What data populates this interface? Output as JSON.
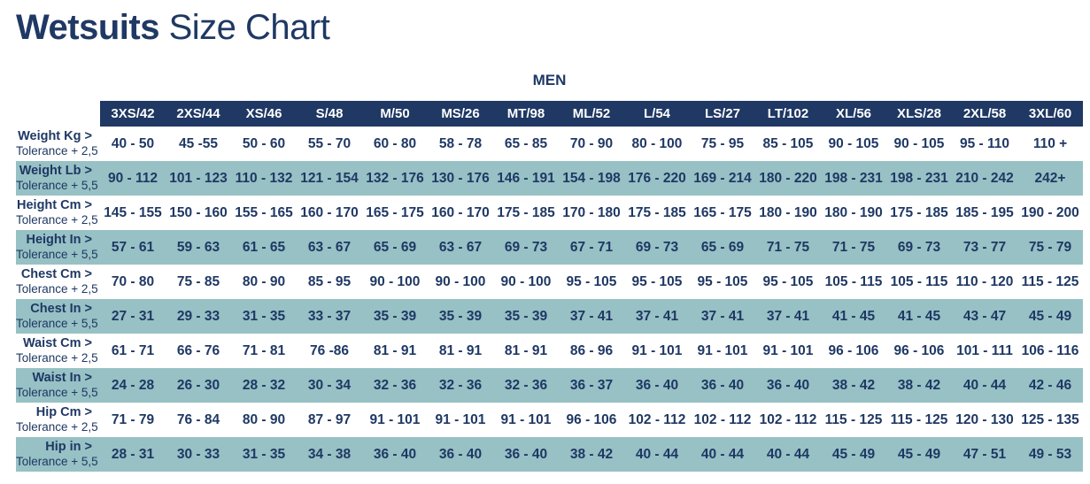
{
  "page": {
    "title": {
      "brand": "Wetsuits",
      "rest": "Size Chart"
    },
    "group_label": "MEN"
  },
  "colors": {
    "header_navy": "#1F3864",
    "row_teal": "#97C1C4",
    "text_navy": "#1F3864",
    "header_text": "#FFFFFF"
  },
  "table": {
    "columns": [
      "3XS/42",
      "2XS/44",
      "XS/46",
      "S/48",
      "M/50",
      "MS/26",
      "MT/98",
      "ML/52",
      "L/54",
      "LS/27",
      "LT/102",
      "XL/56",
      "XLS/28",
      "2XL/58",
      "3XL/60"
    ],
    "rows": [
      {
        "label": "Weight Kg >",
        "tolerance": "Tolerance + 2,5",
        "values": [
          "40 - 50",
          "45 -55",
          "50 - 60",
          "55 - 70",
          "60 - 80",
          "58 - 78",
          "65 - 85",
          "70 - 90",
          "80 - 100",
          "75 - 95",
          "85 - 105",
          "90 - 105",
          "90 - 105",
          "95 - 110",
          "110 +"
        ]
      },
      {
        "label": "Weight Lb >",
        "tolerance": "Tolerance + 5,5",
        "values": [
          "90 - 112",
          "101 - 123",
          "110 - 132",
          "121 - 154",
          "132 - 176",
          "130 - 176",
          "146 - 191",
          "154 - 198",
          "176 - 220",
          "169 - 214",
          "180 - 220",
          "198 - 231",
          "198 - 231",
          "210 - 242",
          "242+"
        ]
      },
      {
        "label": "Height Cm >",
        "tolerance": "Tolerance + 2,5",
        "values": [
          "145 - 155",
          "150 - 160",
          "155 - 165",
          "160 - 170",
          "165 - 175",
          "160 - 170",
          "175 - 185",
          "170 - 180",
          "175 - 185",
          "165 - 175",
          "180 - 190",
          "180 - 190",
          "175 - 185",
          "185 - 195",
          "190 - 200"
        ]
      },
      {
        "label": "Height In >",
        "tolerance": "Tolerance + 5,5",
        "values": [
          "57 - 61",
          "59 - 63",
          "61 - 65",
          "63 - 67",
          "65 - 69",
          "63 - 67",
          "69 - 73",
          "67 - 71",
          "69 - 73",
          "65 - 69",
          "71 - 75",
          "71 - 75",
          "69 - 73",
          "73 - 77",
          "75 - 79"
        ]
      },
      {
        "label": "Chest Cm >",
        "tolerance": "Tolerance + 2,5",
        "values": [
          "70 - 80",
          "75 - 85",
          "80 - 90",
          "85 - 95",
          "90 - 100",
          "90 - 100",
          "90 - 100",
          "95 - 105",
          "95 - 105",
          "95 - 105",
          "95 - 105",
          "105 - 115",
          "105 - 115",
          "110 - 120",
          "115 - 125"
        ]
      },
      {
        "label": "Chest In >",
        "tolerance": "Tolerance + 5,5",
        "values": [
          "27 - 31",
          "29 - 33",
          "31 - 35",
          "33 - 37",
          "35 - 39",
          "35 - 39",
          "35 - 39",
          "37 - 41",
          "37 - 41",
          "37 - 41",
          "37 - 41",
          "41 - 45",
          "41 - 45",
          "43 - 47",
          "45 - 49"
        ]
      },
      {
        "label": "Waist Cm >",
        "tolerance": "Tolerance + 2,5",
        "values": [
          "61 - 71",
          "66 - 76",
          "71 - 81",
          "76 -86",
          "81 - 91",
          "81 - 91",
          "81 - 91",
          "86 - 96",
          "91 - 101",
          "91 - 101",
          "91 - 101",
          "96 - 106",
          "96 - 106",
          "101 - 111",
          "106 - 116"
        ]
      },
      {
        "label": "Waist In >",
        "tolerance": "Tolerance + 5,5",
        "values": [
          "24 - 28",
          "26 - 30",
          "28 - 32",
          "30 - 34",
          "32 - 36",
          "32 - 36",
          "32 - 36",
          "36 - 37",
          "36 - 40",
          "36 - 40",
          "36 - 40",
          "38 - 42",
          "38 - 42",
          "40 - 44",
          "42 - 46"
        ]
      },
      {
        "label": "Hip Cm >",
        "tolerance": "Tolerance + 2,5",
        "values": [
          "71 - 79",
          "76 - 84",
          "80 - 90",
          "87 - 97",
          "91 - 101",
          "91 - 101",
          "91 - 101",
          "96 - 106",
          "102 - 112",
          "102 - 112",
          "102 - 112",
          "115 - 125",
          "115 - 125",
          "120 - 130",
          "125 - 135"
        ]
      },
      {
        "label": "Hip in >",
        "tolerance": "Tolerance + 5,5",
        "values": [
          "28 - 31",
          "30 - 33",
          "31 - 35",
          "34 - 38",
          "36 - 40",
          "36 - 40",
          "36 - 40",
          "38 - 42",
          "40 - 44",
          "40 - 44",
          "40 - 44",
          "45 - 49",
          "45 - 49",
          "47 - 51",
          "49 - 53"
        ]
      }
    ]
  }
}
